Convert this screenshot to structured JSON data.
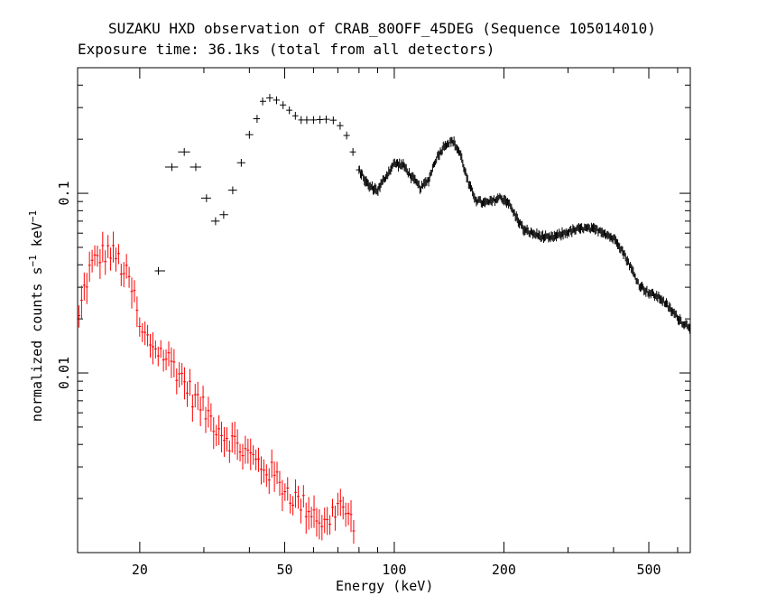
{
  "chart_data": {
    "type": "scatter",
    "title": "SUZAKU HXD observation of CRAB_80OFF_45DEG (Sequence 105014010)",
    "subtitle": "Exposure time: 36.1ks (total from all detectors)",
    "xlabel": "Energy (keV)",
    "ylabel_parts": {
      "pre": "normalized counts s",
      "sup1": "−1",
      "mid": " keV",
      "sup2": "−1"
    },
    "xscale": "log",
    "yscale": "log",
    "xlim": [
      13.5,
      650
    ],
    "ylim": [
      0.001,
      0.5
    ],
    "xtick_labels": [
      {
        "value": 20,
        "label": "20"
      },
      {
        "value": 50,
        "label": "50"
      },
      {
        "value": 100,
        "label": "100"
      },
      {
        "value": 200,
        "label": "200"
      },
      {
        "value": 500,
        "label": "500"
      }
    ],
    "ytick_labels": [
      {
        "value": 0.01,
        "label": "0.01"
      },
      {
        "value": 0.1,
        "label": "0.1"
      }
    ],
    "series": [
      {
        "color": "#ff0000",
        "marker": "crosshair-errorbar",
        "anchors": [
          [
            13.5,
            0.018
          ],
          [
            14,
            0.028
          ],
          [
            14.5,
            0.037
          ],
          [
            15.3,
            0.044
          ],
          [
            16.3,
            0.048
          ],
          [
            17.3,
            0.044
          ],
          [
            18.5,
            0.034
          ],
          [
            19.5,
            0.025
          ],
          [
            20,
            0.017
          ],
          [
            22,
            0.014
          ],
          [
            25,
            0.011
          ],
          [
            28,
            0.0075
          ],
          [
            31,
            0.0058
          ],
          [
            34,
            0.0046
          ],
          [
            38,
            0.0038
          ],
          [
            42,
            0.0032
          ],
          [
            46,
            0.0028
          ],
          [
            50,
            0.0023
          ],
          [
            55,
            0.0019
          ],
          [
            60,
            0.0017
          ],
          [
            65,
            0.0014
          ],
          [
            70,
            0.0019
          ],
          [
            75,
            0.0016
          ],
          [
            78,
            0.0012
          ]
        ],
        "n_points": 105,
        "xmax": 78,
        "scatter_frac": 0.15,
        "err_frac": 0.16
      },
      {
        "color": "#000000",
        "marker": "crosshair-errorbar",
        "bins": [
          [
            22.5,
            0.037
          ],
          [
            24.5,
            0.14
          ],
          [
            26.5,
            0.17
          ],
          [
            28.5,
            0.14
          ],
          [
            30.5,
            0.094
          ],
          [
            32.3,
            0.07
          ],
          [
            34,
            0.076
          ],
          [
            36,
            0.104
          ],
          [
            38,
            0.148
          ],
          [
            40,
            0.212
          ],
          [
            42,
            0.26
          ],
          [
            43.5,
            0.325
          ],
          [
            45.5,
            0.34
          ],
          [
            47.5,
            0.33
          ],
          [
            49.5,
            0.31
          ],
          [
            51.5,
            0.29
          ],
          [
            53.5,
            0.27
          ],
          [
            55.5,
            0.256
          ],
          [
            57.5,
            0.256
          ],
          [
            60,
            0.256
          ],
          [
            62.5,
            0.257
          ],
          [
            65,
            0.258
          ],
          [
            68,
            0.255
          ],
          [
            71,
            0.238
          ],
          [
            74,
            0.21
          ],
          [
            77,
            0.17
          ],
          [
            80,
            0.135
          ]
        ],
        "anchors": [
          [
            80,
            0.135
          ],
          [
            85,
            0.11
          ],
          [
            90,
            0.104
          ],
          [
            95,
            0.125
          ],
          [
            100,
            0.147
          ],
          [
            106,
            0.143
          ],
          [
            112,
            0.122
          ],
          [
            118,
            0.107
          ],
          [
            124,
            0.118
          ],
          [
            130,
            0.155
          ],
          [
            138,
            0.188
          ],
          [
            145,
            0.195
          ],
          [
            152,
            0.165
          ],
          [
            160,
            0.112
          ],
          [
            168,
            0.092
          ],
          [
            176,
            0.088
          ],
          [
            185,
            0.09
          ],
          [
            195,
            0.095
          ],
          [
            205,
            0.09
          ],
          [
            215,
            0.075
          ],
          [
            228,
            0.062
          ],
          [
            245,
            0.059
          ],
          [
            265,
            0.056
          ],
          [
            280,
            0.058
          ],
          [
            300,
            0.061
          ],
          [
            330,
            0.064
          ],
          [
            370,
            0.062
          ],
          [
            410,
            0.054
          ],
          [
            440,
            0.041
          ],
          [
            470,
            0.031
          ],
          [
            500,
            0.028
          ],
          [
            540,
            0.026
          ],
          [
            580,
            0.022
          ],
          [
            620,
            0.019
          ],
          [
            650,
            0.018
          ]
        ],
        "dense_xmin": 80,
        "dense_xmax": 650,
        "n_points": 340,
        "scatter_frac": 0.03,
        "err_frac": 0.05
      }
    ]
  }
}
